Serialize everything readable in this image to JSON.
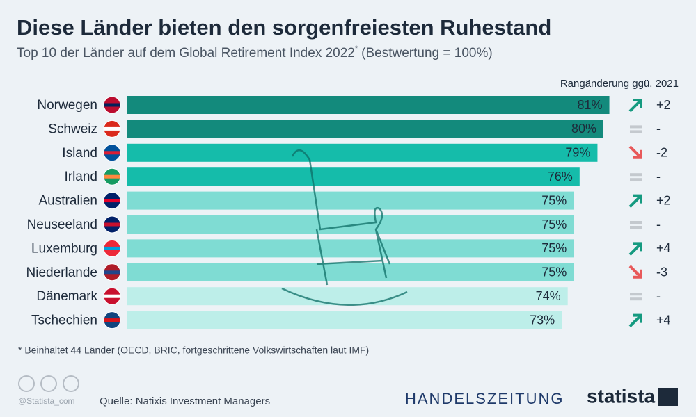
{
  "chart_data": {
    "type": "bar",
    "title": "Diese Länder bieten den sorgenfreiesten Ruhestand",
    "subtitle": "Top 10 der Länder auf dem Global Retirement Index 2022",
    "subtitle_mark": "*",
    "subtitle_note": "(Bestwertung = 100%)",
    "categories": [
      "Norwegen",
      "Schweiz",
      "Island",
      "Irland",
      "Australien",
      "Neuseeland",
      "Luxemburg",
      "Niederlande",
      "Dänemark",
      "Tschechien"
    ],
    "values": [
      81,
      80,
      79,
      76,
      75,
      75,
      75,
      75,
      74,
      73
    ],
    "value_labels": [
      "81%",
      "80%",
      "79%",
      "76%",
      "75%",
      "75%",
      "75%",
      "75%",
      "74%",
      "73%"
    ],
    "colors": [
      "#138a7c",
      "#138a7c",
      "#15bcaa",
      "#15bcaa",
      "#7fdcd3",
      "#7fdcd3",
      "#7fdcd3",
      "#7fdcd3",
      "#bdeee9",
      "#bdeee9"
    ],
    "xlim": [
      0,
      100
    ],
    "rank_change_title": "Rangänderung ggü. 2021",
    "rank_change": [
      "+2",
      "-",
      "-2",
      "-",
      "+2",
      "-",
      "+4",
      "-3",
      "-",
      "+4"
    ],
    "footnote": "* Beinhaltet 44 Länder (OECD, BRIC, fortgeschrittene Volkswirtschaften laut IMF)",
    "source": "Quelle: Natixis Investment Managers",
    "handle": "@Statista_com",
    "partner": "HANDELSZEITUNG",
    "brand": "statista"
  }
}
